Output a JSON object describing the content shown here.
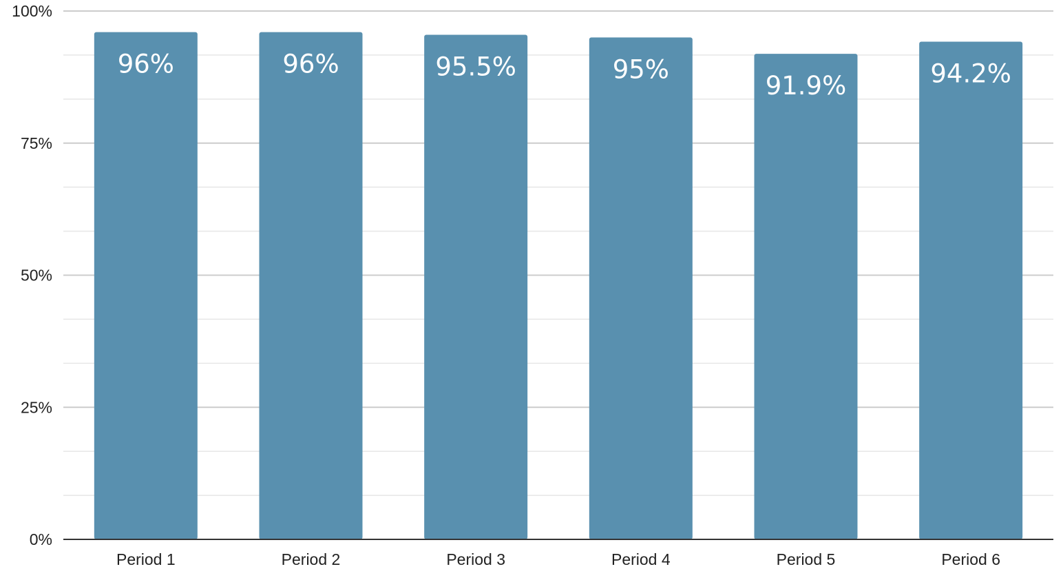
{
  "chart_data": {
    "type": "bar",
    "title": "",
    "xlabel": "",
    "ylabel": "",
    "categories": [
      "Period 1",
      "Period 2",
      "Period 3",
      "Period 4",
      "Period 5",
      "Period 6"
    ],
    "values": [
      96,
      96,
      95.5,
      95,
      91.9,
      94.2
    ],
    "data_labels": [
      "96%",
      "96%",
      "95.5%",
      "95%",
      "91.9%",
      "94.2%"
    ],
    "ylim": [
      0,
      100
    ],
    "yticks": [
      0,
      25,
      50,
      75,
      100
    ],
    "ytick_labels": [
      "0%",
      "25%",
      "50%",
      "75%",
      "100%"
    ],
    "minor_gridlines": [
      8.33,
      16.67,
      33.33,
      41.67,
      58.33,
      66.67,
      83.33,
      91.67
    ],
    "grid": true,
    "legend": "none",
    "colors": {
      "bar": "#5990af",
      "major_grid": "#cccccc",
      "minor_grid": "#e6e6e6",
      "axis": "#333333",
      "label_text": "#ffffff",
      "tick_text": "#222222"
    }
  }
}
